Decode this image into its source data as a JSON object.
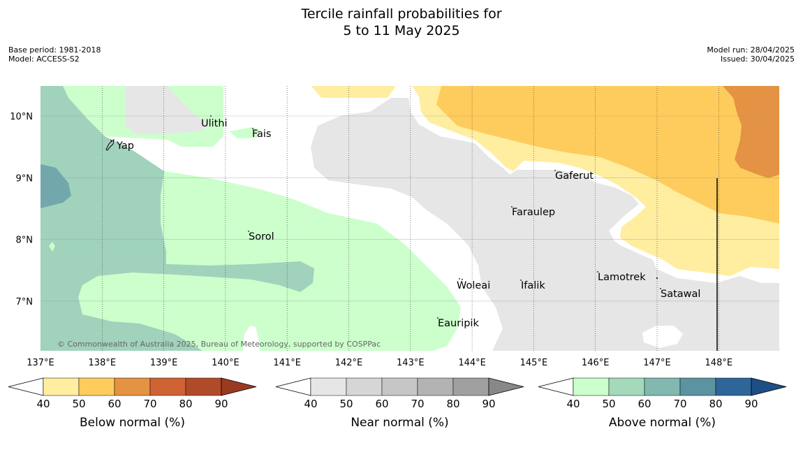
{
  "title": {
    "line1": "Tercile rainfall probabilities for",
    "line2": "5 to 11 May 2025"
  },
  "meta": {
    "base_period": "Base period: 1981-2018",
    "model": "Model: ACCESS-S2",
    "model_run": "Model run: 28/04/2025",
    "issued": "Issued: 30/04/2025"
  },
  "map": {
    "lon_ticks": [
      "137°E",
      "138°E",
      "139°E",
      "140°E",
      "141°E",
      "142°E",
      "143°E",
      "144°E",
      "145°E",
      "146°E",
      "147°E",
      "148°E"
    ],
    "lat_ticks": [
      "10°N",
      "9°N",
      "8°N",
      "7°N"
    ],
    "places": [
      "Ulithi",
      "Fais",
      "Yap",
      "Gaferut",
      "Faraulep",
      "Sorol",
      "Woleai",
      "Ifalik",
      "Lamotrek",
      "Satawal",
      "Eauripik"
    ],
    "copyright": "© Commonwealth of Australia 2025, Bureau of Meteorology, supported by COSPPac"
  },
  "colorbars": [
    {
      "label": "Below normal (%)",
      "ticks": [
        "40",
        "50",
        "60",
        "70",
        "80",
        "90"
      ],
      "colors": [
        "#ffffff",
        "#ffeda0",
        "#fecc5c",
        "#e39343",
        "#cf6334",
        "#b04b2a",
        "#9a3a22"
      ]
    },
    {
      "label": "Near normal (%)",
      "ticks": [
        "40",
        "50",
        "60",
        "70",
        "80",
        "90"
      ],
      "colors": [
        "#ffffff",
        "#e6e6e6",
        "#d6d6d6",
        "#c6c6c6",
        "#b3b3b3",
        "#a0a0a0",
        "#888888"
      ]
    },
    {
      "label": "Above normal (%)",
      "ticks": [
        "40",
        "50",
        "60",
        "70",
        "80",
        "90"
      ],
      "colors": [
        "#ffffff",
        "#ccffcc",
        "#a4d9bb",
        "#82b8b0",
        "#5b93a0",
        "#2f6699",
        "#1d4f85"
      ]
    }
  ],
  "map_colors": {
    "below_50": "#ffeda0",
    "below_60": "#fecc5c",
    "below_70": "#e39343",
    "near_50": "#e6e6e6",
    "above_50": "#ccffcc",
    "above_60": "#a0d2bc",
    "above_70": "#72a8ab"
  }
}
